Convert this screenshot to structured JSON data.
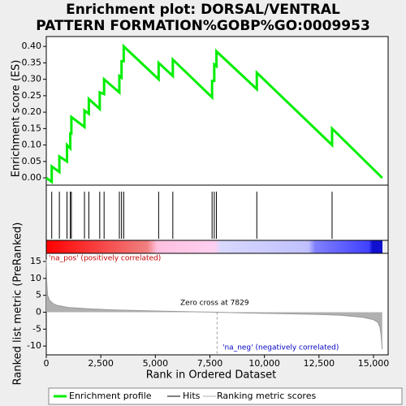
{
  "chart_data": [
    {
      "type": "line",
      "title": "Enrichment plot: DORSAL/VENTRAL PATTERN FORMATION%GOBP%GO:0009953",
      "ylabel": "Enrichment score (ES)",
      "name": "Enrichment profile",
      "color": "#00ee00",
      "xlim": [
        0,
        15670
      ],
      "ylim": [
        -0.022,
        0.43
      ],
      "yticks": [
        {
          "value": 0,
          "label": "0.00"
        },
        {
          "value": 0.05,
          "label": "0.05"
        },
        {
          "value": 0.1,
          "label": "0.10"
        },
        {
          "value": 0.15,
          "label": "0.15"
        },
        {
          "value": 0.2,
          "label": "0.20"
        },
        {
          "value": 0.25,
          "label": "0.25"
        },
        {
          "value": 0.3,
          "label": "0.30"
        },
        {
          "value": 0.35,
          "label": "0.35"
        },
        {
          "value": 0.4,
          "label": "0.40"
        }
      ],
      "x": [
        0,
        250,
        250,
        600,
        600,
        950,
        950,
        1100,
        1100,
        1150,
        1150,
        1750,
        1750,
        1950,
        1950,
        2450,
        2450,
        2650,
        2650,
        3350,
        3350,
        3450,
        3450,
        3550,
        3550,
        5150,
        5150,
        5800,
        5800,
        7600,
        7600,
        7700,
        7700,
        7800,
        7800,
        9650,
        9650,
        13100,
        13100,
        15400
      ],
      "values": [
        0,
        -0.012,
        0.035,
        0.018,
        0.065,
        0.05,
        0.1,
        0.09,
        0.135,
        0.135,
        0.185,
        0.155,
        0.205,
        0.195,
        0.24,
        0.21,
        0.26,
        0.255,
        0.3,
        0.26,
        0.31,
        0.305,
        0.355,
        0.355,
        0.4,
        0.3,
        0.35,
        0.31,
        0.36,
        0.245,
        0.295,
        0.295,
        0.345,
        0.34,
        0.385,
        0.27,
        0.32,
        0.1,
        0.15,
        0
      ]
    },
    {
      "type": "hits",
      "name": "Hits",
      "color": "#000000",
      "xlim": [
        0,
        15670
      ],
      "x": [
        250,
        600,
        950,
        1100,
        1150,
        1750,
        1950,
        2450,
        2650,
        3350,
        3450,
        3550,
        5150,
        5800,
        7600,
        7700,
        7800,
        9650,
        13100
      ]
    },
    {
      "type": "area",
      "name": "Ranking metric scores",
      "color": "#b0b0b0",
      "xlabel": "Rank in Ordered Dataset",
      "ylabel": "Ranked list metric (PreRanked)",
      "xlim": [
        0,
        15670
      ],
      "ylim": [
        -12.6,
        17.4
      ],
      "xticks": [
        0,
        {
          "value": 2500,
          "label": "2,500"
        },
        {
          "value": 5000,
          "label": "5,000"
        },
        {
          "value": 7500,
          "label": "7,500"
        },
        {
          "value": 10000,
          "label": "10,000"
        },
        {
          "value": 12500,
          "label": "12,500"
        },
        {
          "value": 15000,
          "label": "15,000"
        }
      ],
      "yticks": [
        15,
        10,
        5,
        0,
        -5,
        -10
      ],
      "x": [
        0,
        20,
        60,
        150,
        300,
        500,
        1000,
        2000,
        3000,
        5000,
        7000,
        7829,
        9000,
        11000,
        12500,
        13500,
        14500,
        15000,
        15200,
        15300,
        15350,
        15400
      ],
      "values": [
        15.5,
        9,
        5,
        3.5,
        2.6,
        2.0,
        1.4,
        1.0,
        0.7,
        0.35,
        0.1,
        0,
        -0.2,
        -0.45,
        -0.65,
        -0.9,
        -1.5,
        -2.2,
        -3,
        -4.5,
        -7,
        -11
      ],
      "zero_cross": 7829,
      "annotations": [
        "'na_pos' (positively correlated)",
        "Zero cross at 7829",
        "'na_neg' (negatively correlated)"
      ]
    }
  ]
}
